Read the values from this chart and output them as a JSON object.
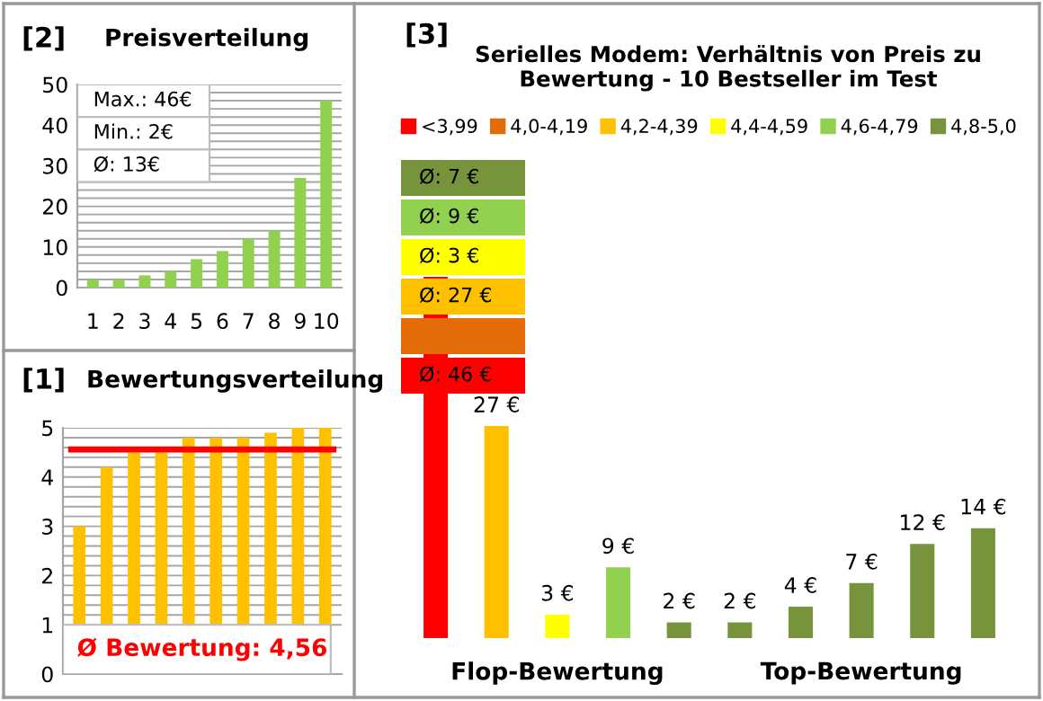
{
  "chart_data": [
    {
      "type": "bar",
      "title": "Preisverteilung",
      "annotations": [
        "[2]",
        "Max.: 46€",
        "Min.: 2€",
        "Ø: 13€"
      ],
      "categories": [
        "1",
        "2",
        "3",
        "4",
        "5",
        "6",
        "7",
        "8",
        "9",
        "10"
      ],
      "values": [
        2,
        2,
        3,
        4,
        7,
        9,
        12,
        14,
        27,
        46
      ],
      "color": "#92d050",
      "ylim": [
        0,
        50
      ],
      "yticks": [
        0,
        {
          "value": 2,
          "label": null
        },
        {
          "value": 4,
          "label": null
        },
        {
          "value": 6,
          "label": null
        },
        {
          "value": 8,
          "label": null
        },
        10,
        {
          "value": 12,
          "label": null
        },
        {
          "value": 14,
          "label": null
        },
        {
          "value": 16,
          "label": null
        },
        {
          "value": 18,
          "label": null
        },
        20,
        {
          "value": 22,
          "label": null
        },
        {
          "value": 24,
          "label": null
        },
        {
          "value": 26,
          "label": null
        },
        {
          "value": 28,
          "label": null
        },
        30,
        {
          "value": 32,
          "label": null
        },
        {
          "value": 34,
          "label": null
        },
        {
          "value": 36,
          "label": null
        },
        {
          "value": 38,
          "label": null
        },
        40,
        {
          "value": 42,
          "label": null
        },
        {
          "value": 44,
          "label": null
        },
        {
          "value": 46,
          "label": null
        },
        {
          "value": 48,
          "label": null
        },
        50
      ],
      "grid": "y"
    },
    {
      "type": "bar",
      "title": "Bewertungsverteilung",
      "annotations": [
        "[1]"
      ],
      "categories": [
        null,
        null,
        null,
        null,
        null,
        null,
        null,
        null,
        null,
        null
      ],
      "values": [
        3,
        4.2,
        4.5,
        4.5,
        4.8,
        4.8,
        4.8,
        4.9,
        5,
        5
      ],
      "color": "#ffc000",
      "ylim": [
        0,
        5
      ],
      "yticks": [
        0,
        1,
        {
          "value": 1.2,
          "label": null
        },
        {
          "value": 1.4,
          "label": null
        },
        {
          "value": 1.6,
          "label": null
        },
        {
          "value": 1.8,
          "label": null
        },
        2,
        {
          "value": 2.2,
          "label": null
        },
        {
          "value": 2.4,
          "label": null
        },
        {
          "value": 2.6,
          "label": null
        },
        {
          "value": 2.8,
          "label": null
        },
        3,
        {
          "value": 3.2,
          "label": null
        },
        {
          "value": 3.4,
          "label": null
        },
        {
          "value": 3.6,
          "label": null
        },
        {
          "value": 3.8,
          "label": null
        },
        4,
        {
          "value": 4.2,
          "label": null
        },
        {
          "value": 4.4,
          "label": null
        },
        {
          "value": 4.6,
          "label": null
        },
        {
          "value": 4.8,
          "label": null
        },
        5
      ],
      "grid": "y",
      "ref_lines": [
        {
          "axis": "y",
          "value": 4.56,
          "label": "Ø Bewertung: 4,56",
          "color": "#ff0000"
        }
      ]
    },
    {
      "type": "bar",
      "title": "Serielles Modem: Verhältnis von Preis zu Bewertung - 10 Bestseller im Test",
      "stacked": true,
      "legend": "top",
      "annotations": [
        "[3]",
        "Flop-Bewertung",
        "Top-Bewertung",
        "Ø: 7 €",
        "Ø: 9 €",
        "Ø: 3 €",
        "Ø: 27 €",
        "Ø: 46 €"
      ],
      "categories": [
        null,
        null,
        null,
        null,
        null,
        null,
        null,
        null,
        null,
        null
      ],
      "series": [
        {
          "name": "<3,99",
          "color": "#ff0000",
          "values": [
            46,
            null,
            null,
            null,
            null,
            null,
            null,
            null,
            null,
            null
          ],
          "value_labels": [
            null,
            null,
            null,
            null,
            null,
            null,
            null,
            null,
            null,
            null
          ]
        },
        {
          "name": "4,0-4,19",
          "color": "#e36c09",
          "values": [
            null,
            null,
            null,
            null,
            null,
            null,
            null,
            null,
            null,
            null
          ],
          "value_labels": [
            null,
            null,
            null,
            null,
            null,
            null,
            null,
            null,
            null,
            null
          ]
        },
        {
          "name": "4,2-4,39",
          "color": "#ffc000",
          "values": [
            null,
            27,
            null,
            null,
            null,
            null,
            null,
            null,
            null,
            null
          ],
          "value_labels": [
            null,
            "27 €",
            null,
            null,
            null,
            null,
            null,
            null,
            null,
            null
          ]
        },
        {
          "name": "4,4-4,59",
          "color": "#ffff00",
          "values": [
            null,
            null,
            3,
            null,
            null,
            null,
            null,
            null,
            null,
            null
          ],
          "value_labels": [
            null,
            null,
            "3 €",
            null,
            null,
            null,
            null,
            null,
            null,
            null
          ]
        },
        {
          "name": "4,6-4,79",
          "color": "#92d050",
          "values": [
            null,
            null,
            null,
            9,
            null,
            null,
            null,
            null,
            null,
            null
          ],
          "value_labels": [
            null,
            null,
            null,
            "9 €",
            null,
            null,
            null,
            null,
            null,
            null
          ]
        },
        {
          "name": "4,8-5,0",
          "color": "#77933c",
          "values": [
            null,
            null,
            null,
            null,
            2,
            2,
            4,
            7,
            12,
            14
          ],
          "value_labels": [
            null,
            null,
            null,
            null,
            "2 €",
            "2 €",
            "4 €",
            "7 €",
            "12 €",
            "14 €"
          ]
        }
      ]
    }
  ]
}
